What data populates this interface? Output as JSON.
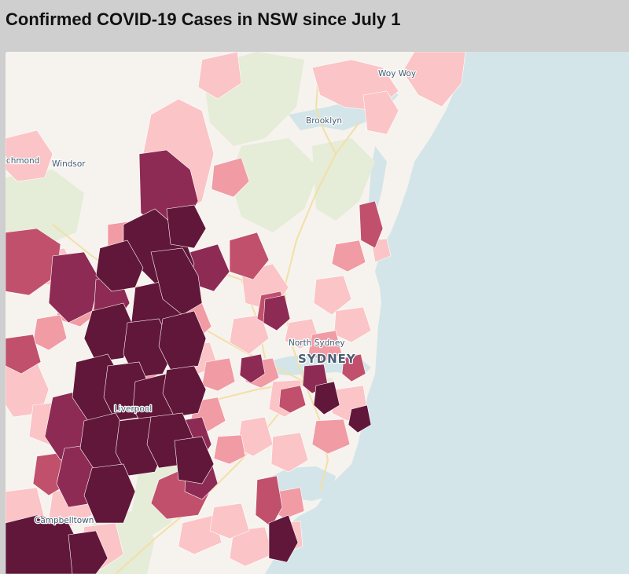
{
  "header": {
    "title": "Confirmed COVID-19 Cases in NSW since July 1"
  },
  "map": {
    "colors": {
      "background": "#cfcfcf",
      "water": "#d3e5e8",
      "land": "#f6f3ee",
      "park": "#e5ecd7",
      "roads": "#f3dfa7",
      "choropleth_low": "#fbc4c6",
      "choropleth_mid_low": "#f19ba4",
      "choropleth_mid": "#c1506c",
      "choropleth_mid_high": "#8e2b55",
      "choropleth_high": "#611739"
    },
    "labels": {
      "woy_woy": "Woy Woy",
      "brooklyn": "Brooklyn",
      "richmond": "ichmond",
      "windsor": "Windsor",
      "north_sydney": "North Sydney",
      "sydney": "SYDNEY",
      "liverpool": "Liverpool",
      "campbelltown": "Campbelltown"
    }
  }
}
